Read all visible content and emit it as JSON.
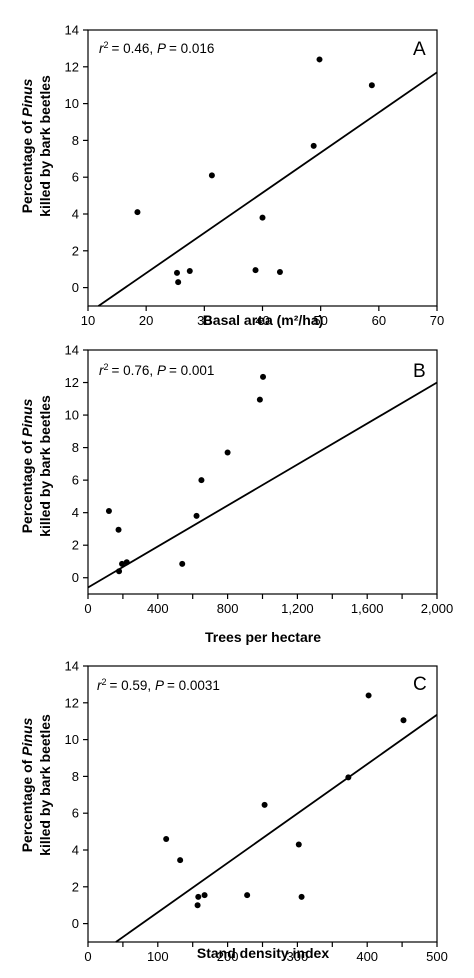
{
  "ylabel_line1_prefix": "Percentage of ",
  "ylabel_line1_genus": "Pinus",
  "ylabel_line2": "killed by bark beetles",
  "chart_data": [
    {
      "type": "scatter",
      "panel": "A",
      "stat_r2": "= 0.46, ",
      "stat_p": "= 0.016",
      "xlabel": "Basal area (m²/ha)",
      "xlim": [
        10,
        70
      ],
      "ylim": [
        -1,
        14
      ],
      "xticks": [
        10,
        20,
        30,
        40,
        50,
        60,
        70
      ],
      "xtick_labels": [
        "10",
        "20",
        "30",
        "40",
        "50",
        "60",
        "70"
      ],
      "yticks": [
        0,
        2,
        4,
        6,
        8,
        10,
        12,
        14
      ],
      "ytick_labels": [
        "0",
        "2",
        "4",
        "6",
        "8",
        "10",
        "12",
        "14"
      ],
      "points": [
        [
          18.5,
          4.1
        ],
        [
          25.3,
          0.8
        ],
        [
          25.5,
          0.3
        ],
        [
          27.5,
          0.9
        ],
        [
          31.3,
          6.1
        ],
        [
          38.8,
          0.95
        ],
        [
          40.0,
          3.8
        ],
        [
          43.0,
          0.85
        ],
        [
          48.8,
          7.7
        ],
        [
          49.8,
          12.4
        ],
        [
          58.8,
          11.0
        ]
      ],
      "trendline": [
        [
          11.8,
          -1.0
        ],
        [
          70,
          11.7
        ]
      ],
      "grid": false
    },
    {
      "type": "scatter",
      "panel": "B",
      "stat_r2": "= 0.76, ",
      "stat_p": "= 0.001",
      "xlabel": "Trees per hectare",
      "xlim": [
        0,
        2000
      ],
      "ylim": [
        -1,
        14
      ],
      "xticks": [
        0,
        200,
        400,
        600,
        800,
        1000,
        1200,
        1400,
        1600,
        1800,
        2000
      ],
      "xtick_labels": [
        "0",
        "",
        "400",
        "",
        "800",
        "",
        "1,200",
        "",
        "1,600",
        "",
        "2,000"
      ],
      "yticks": [
        0,
        2,
        4,
        6,
        8,
        10,
        12,
        14
      ],
      "ytick_labels": [
        "0",
        "2",
        "4",
        "6",
        "8",
        "10",
        "12",
        "14"
      ],
      "points": [
        [
          120,
          4.1
        ],
        [
          175,
          2.95
        ],
        [
          178,
          0.4
        ],
        [
          195,
          0.85
        ],
        [
          222,
          0.95
        ],
        [
          540,
          0.85
        ],
        [
          622,
          3.8
        ],
        [
          650,
          6.0
        ],
        [
          800,
          7.7
        ],
        [
          985,
          10.95
        ],
        [
          1003,
          12.35
        ]
      ],
      "trendline": [
        [
          0,
          -0.6
        ],
        [
          2000,
          12.0
        ]
      ],
      "grid": false
    },
    {
      "type": "scatter",
      "panel": "C",
      "stat_r2": "= 0.59, ",
      "stat_p": "= 0.0031",
      "xlabel": "Stand density index",
      "xlim": [
        0,
        500
      ],
      "ylim": [
        -1,
        14
      ],
      "xticks": [
        0,
        50,
        100,
        150,
        200,
        250,
        300,
        350,
        400,
        450,
        500
      ],
      "xtick_labels": [
        "0",
        "",
        "100",
        "",
        "200",
        "",
        "300",
        "",
        "400",
        "",
        "500"
      ],
      "yticks": [
        0,
        2,
        4,
        6,
        8,
        10,
        12,
        14
      ],
      "ytick_labels": [
        "0",
        "2",
        "4",
        "6",
        "8",
        "10",
        "12",
        "14"
      ],
      "points": [
        [
          112,
          4.6
        ],
        [
          132,
          3.45
        ],
        [
          157,
          1.0
        ],
        [
          158,
          1.45
        ],
        [
          167,
          1.55
        ],
        [
          228,
          1.55
        ],
        [
          253,
          6.45
        ],
        [
          302,
          4.3
        ],
        [
          306,
          1.45
        ],
        [
          373,
          7.95
        ],
        [
          402,
          12.4
        ],
        [
          452,
          11.05
        ]
      ],
      "trendline": [
        [
          40,
          -1.0
        ],
        [
          500,
          11.35
        ]
      ],
      "grid": false
    }
  ]
}
